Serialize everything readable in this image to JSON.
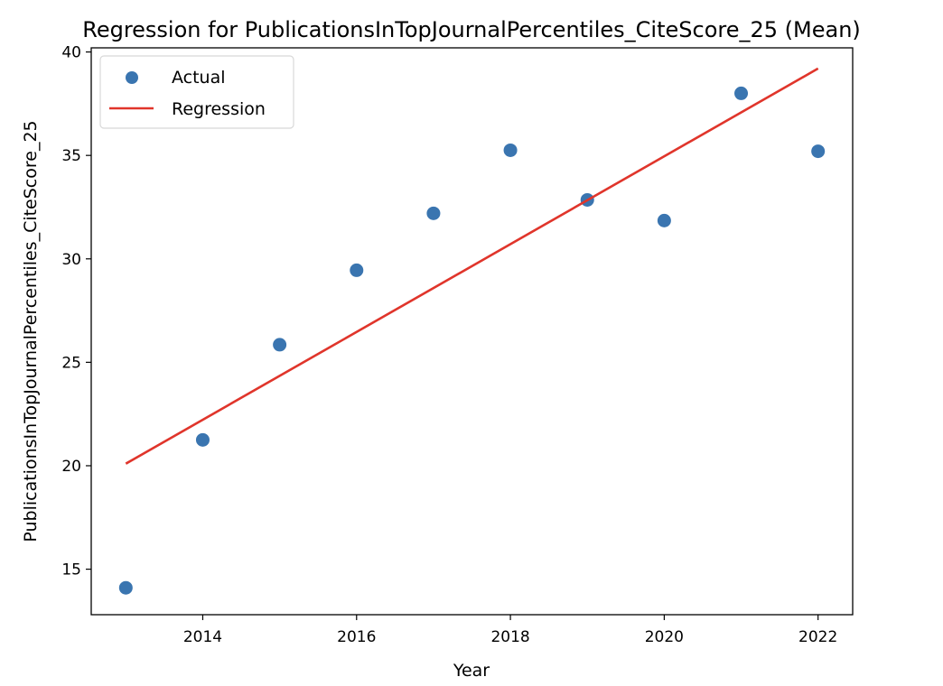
{
  "chart_data": {
    "type": "scatter",
    "title": "Regression for PublicationsInTopJournalPercentiles_CiteScore_25 (Mean)",
    "xlabel": "Year",
    "ylabel": "PublicationsInTopJournalPercentiles_CiteScore_25",
    "xlim": [
      2012.55,
      2022.45
    ],
    "ylim": [
      12.8,
      40.2
    ],
    "xticks": [
      2014,
      2016,
      2018,
      2020,
      2022
    ],
    "yticks": [
      15,
      20,
      25,
      30,
      35,
      40
    ],
    "grid": false,
    "legend_position": "top-left",
    "series": [
      {
        "name": "Actual",
        "kind": "scatter",
        "color": "#3a75b0",
        "x": [
          2013,
          2014,
          2015,
          2016,
          2017,
          2018,
          2019,
          2020,
          2021,
          2022
        ],
        "y": [
          14.1,
          21.25,
          25.85,
          29.45,
          32.2,
          35.25,
          32.85,
          31.85,
          38.0,
          35.2
        ]
      },
      {
        "name": "Regression",
        "kind": "line",
        "color": "#e0352b",
        "x": [
          2013,
          2022
        ],
        "y": [
          20.1,
          39.2
        ]
      }
    ]
  }
}
